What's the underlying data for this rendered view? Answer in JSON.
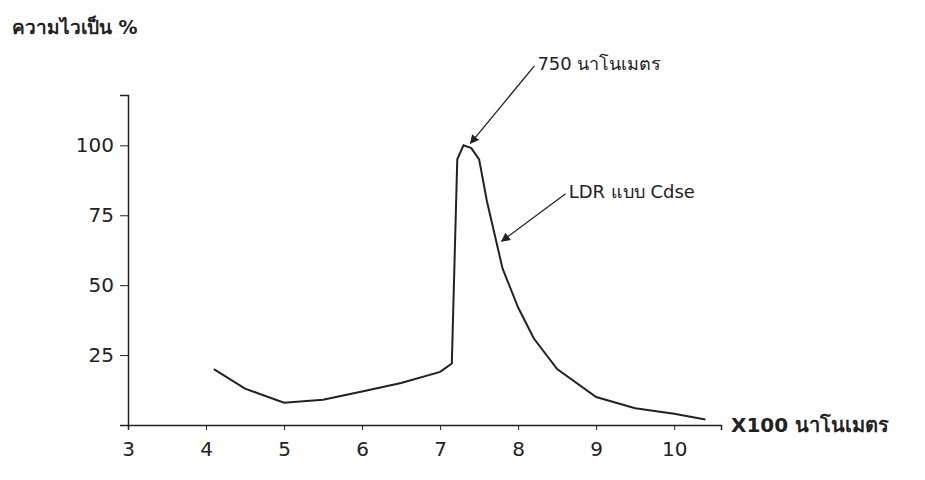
{
  "chart_data": {
    "type": "line",
    "y_label": "ความไวเป็น %",
    "x_label": "X100 นาโนเมตร",
    "x": [
      4.1,
      4.5,
      5.0,
      5.5,
      6.0,
      6.5,
      7.0,
      7.15,
      7.22,
      7.3,
      7.4,
      7.5,
      7.6,
      7.7,
      7.8,
      8.0,
      8.2,
      8.5,
      9.0,
      9.5,
      10.0,
      10.4
    ],
    "values": [
      20,
      13,
      8,
      9,
      12,
      15,
      19,
      22,
      95,
      100,
      99,
      95,
      80,
      68,
      56,
      42,
      31,
      20,
      10,
      6,
      4,
      2
    ],
    "color": "#222222",
    "xlim": [
      3,
      10.6
    ],
    "ylim": [
      0,
      118
    ],
    "xticks": [
      3,
      4,
      5,
      6,
      7,
      8,
      9,
      10
    ],
    "yticks": [
      25,
      50,
      75,
      100
    ],
    "grid": false,
    "annotations": [
      {
        "text": "750 นาโนเมตร",
        "x": 7.35,
        "y": 100
      },
      {
        "text": "LDR แบบ Cdse",
        "x": 7.75,
        "y": 65
      }
    ]
  }
}
